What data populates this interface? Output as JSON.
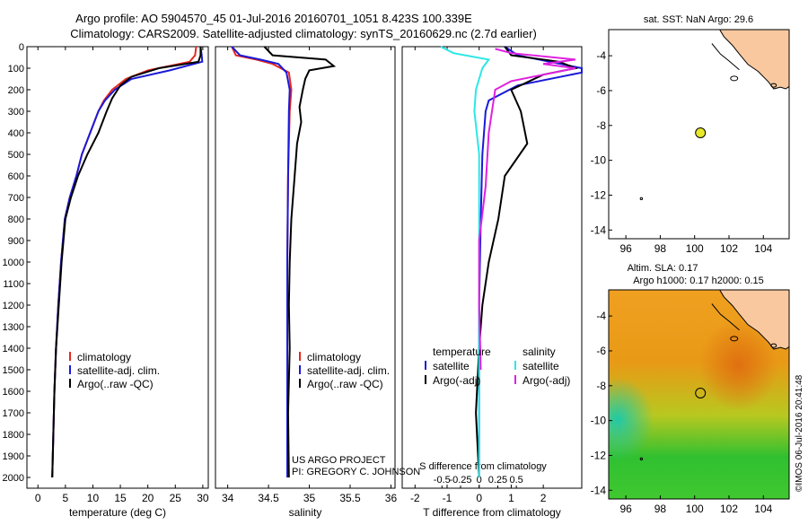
{
  "title": {
    "line1": "Argo profile: AO 5904570_45 01-Jul-2016 20160701_1051 8.423S 100.339E",
    "line2": "Climatology: CARS2009. Satellite-adjusted climatology: synTS_20160629.nc (2.7d earlier)"
  },
  "colors": {
    "climatology": "#e8281e",
    "satellite": "#1a1ad8",
    "argo": "#000000",
    "sat_salinity": "#2ee6e6",
    "argo_salinity": "#e020e0",
    "land": "#f9c89f",
    "marker": "#e8e82a"
  },
  "credit": {
    "project": "US ARGO PROJECT",
    "pi": "PI: GREGORY C. JOHNSON",
    "stamp": "©IMOS 06-Jul-2016 20:41:48"
  },
  "chart_data": [
    {
      "type": "line",
      "name": "temperature",
      "xlabel": "temperature (deg C)",
      "xlim": [
        -2,
        31
      ],
      "ylim": [
        2050,
        0
      ],
      "xticks": [
        0,
        5,
        10,
        15,
        20,
        25,
        30
      ],
      "yticks": [
        0,
        100,
        200,
        300,
        400,
        500,
        600,
        700,
        800,
        900,
        1000,
        1100,
        1200,
        1300,
        1400,
        1500,
        1600,
        1700,
        1800,
        1900,
        2000
      ],
      "legend": [
        "climatology",
        "satellite-adj. clim.",
        "Argo(..raw -QC)"
      ],
      "series": [
        {
          "name": "climatology",
          "color_key": "climatology",
          "x": [
            28.8,
            28.6,
            27.6,
            20,
            16,
            13.5,
            12,
            11,
            9.5,
            8,
            7,
            5.8,
            4.9,
            4.2,
            3.7,
            3.3,
            3.0,
            2.8,
            2.6
          ],
          "y": [
            0,
            40,
            70,
            110,
            150,
            200,
            250,
            300,
            400,
            500,
            600,
            700,
            800,
            1000,
            1200,
            1400,
            1600,
            1800,
            2000
          ]
        },
        {
          "name": "satellite-adj. clim.",
          "color_key": "satellite",
          "x": [
            29.6,
            29.8,
            29.9,
            24,
            17,
            14,
            12.2,
            11,
            9.5,
            8,
            7,
            5.8,
            4.9,
            4.2,
            3.7,
            3.3,
            3.0,
            2.8,
            2.6
          ],
          "y": [
            0,
            40,
            70,
            110,
            150,
            200,
            250,
            300,
            400,
            500,
            600,
            700,
            800,
            1000,
            1200,
            1400,
            1600,
            1800,
            2000
          ]
        },
        {
          "name": "Argo",
          "color_key": "argo",
          "x": [
            29.6,
            29.6,
            29.2,
            22,
            17,
            15,
            13.5,
            12.5,
            11,
            9,
            7.3,
            6,
            5,
            4.3,
            3.8,
            3.3,
            3.0,
            2.8,
            2.6
          ],
          "y": [
            0,
            40,
            70,
            100,
            140,
            180,
            240,
            300,
            400,
            500,
            600,
            700,
            800,
            1000,
            1200,
            1400,
            1600,
            1800,
            2000
          ]
        }
      ]
    },
    {
      "type": "line",
      "name": "salinity",
      "xlabel": "salinity",
      "xlim": [
        33.85,
        36.05
      ],
      "ylim": [
        2050,
        0
      ],
      "xticks": [
        34,
        34.5,
        35,
        35.5,
        36
      ],
      "legend": [
        "climatology",
        "satellite-adj. clim.",
        "Argo(..raw -QC)"
      ],
      "series": [
        {
          "name": "climatology",
          "color_key": "climatology",
          "x": [
            34.05,
            34.1,
            34.35,
            34.55,
            34.75,
            34.78,
            34.76,
            34.74,
            34.73,
            34.73
          ],
          "y": [
            0,
            40,
            60,
            80,
            120,
            200,
            300,
            600,
            1000,
            2000
          ]
        },
        {
          "name": "satellite-adj. clim.",
          "color_key": "satellite",
          "x": [
            34.05,
            34.15,
            34.4,
            34.62,
            34.72,
            34.76,
            34.75,
            34.74,
            34.73,
            34.73
          ],
          "y": [
            0,
            40,
            60,
            80,
            120,
            200,
            300,
            600,
            1000,
            2000
          ]
        },
        {
          "name": "Argo",
          "color_key": "argo",
          "x": [
            34.45,
            34.55,
            35.2,
            35.3,
            35.0,
            34.95,
            34.92,
            34.88,
            34.9,
            34.85,
            34.82,
            34.78,
            34.76,
            34.75,
            34.76,
            34.74,
            34.75
          ],
          "y": [
            0,
            40,
            60,
            90,
            110,
            150,
            200,
            280,
            350,
            450,
            600,
            800,
            1000,
            1200,
            1400,
            1700,
            2000
          ]
        }
      ]
    },
    {
      "type": "line",
      "name": "difference",
      "xlabel": "T difference from climatology",
      "xlabel_top": "S difference from climatology",
      "xlim": [
        -2.4,
        3.2
      ],
      "ylim": [
        2050,
        0
      ],
      "xticks": [
        -2,
        -1,
        0,
        1,
        2
      ],
      "sticks": [
        -0.5,
        -0.25,
        0,
        0.25,
        0.5
      ],
      "legend_t_title": "temperature",
      "legend_s_title": "salinity",
      "legend": [
        "satellite",
        "Argo(-adj)",
        "satellite",
        "Argo(-adj)"
      ],
      "series": [
        {
          "name": "T satellite",
          "color_key": "satellite",
          "x": [
            0.8,
            1.2,
            2.2,
            3.2,
            3.2,
            1.2,
            0.3,
            0.2,
            0.1,
            0.05,
            0.0,
            0.0,
            0.0
          ],
          "y": [
            0,
            40,
            70,
            100,
            120,
            180,
            250,
            300,
            500,
            800,
            1200,
            1600,
            2000
          ]
        },
        {
          "name": "T Argo",
          "color_key": "argo",
          "x": [
            0.8,
            1.0,
            2.5,
            3.0,
            2.0,
            1.0,
            1.3,
            1.5,
            0.8,
            0.6,
            0.3,
            0.1,
            0.0,
            -0.1,
            0.0
          ],
          "y": [
            0,
            40,
            70,
            100,
            130,
            200,
            300,
            450,
            600,
            800,
            1000,
            1200,
            1400,
            1700,
            2000
          ]
        },
        {
          "name": "S satellite",
          "color_key": "sat_salinity",
          "x": [
            -1.2,
            -0.8,
            0.3,
            0.1,
            -0.1,
            -0.15,
            0.0,
            0.0,
            0.0,
            0.0,
            0.0
          ],
          "y": [
            0,
            30,
            60,
            100,
            200,
            300,
            500,
            800,
            1200,
            1600,
            2000
          ]
        },
        {
          "name": "S Argo",
          "color_key": "argo_salinity",
          "x": [
            0.5,
            1.0,
            3.0,
            2.0,
            3.0,
            1.0,
            0.5,
            0.3,
            0.2,
            0.0,
            0.0,
            0.05
          ],
          "y": [
            10,
            30,
            60,
            80,
            100,
            160,
            200,
            400,
            650,
            900,
            1200,
            1500
          ]
        }
      ]
    }
  ],
  "maps": {
    "xticks": [
      96,
      98,
      100,
      102,
      104
    ],
    "yticks": [
      -4,
      -6,
      -8,
      -10,
      -12,
      -14
    ],
    "lon_range": [
      95,
      105.5
    ],
    "lat_range": [
      -14.5,
      -2.5
    ],
    "marker": {
      "lon": 100.339,
      "lat": -8.423
    },
    "sst": {
      "title": "sat. SST: NaN Argo: 29.6"
    },
    "sla": {
      "title": "Altim. SLA: 0.17",
      "subtitle": "Argo h1000: 0.17 h2000: 0.15"
    }
  }
}
